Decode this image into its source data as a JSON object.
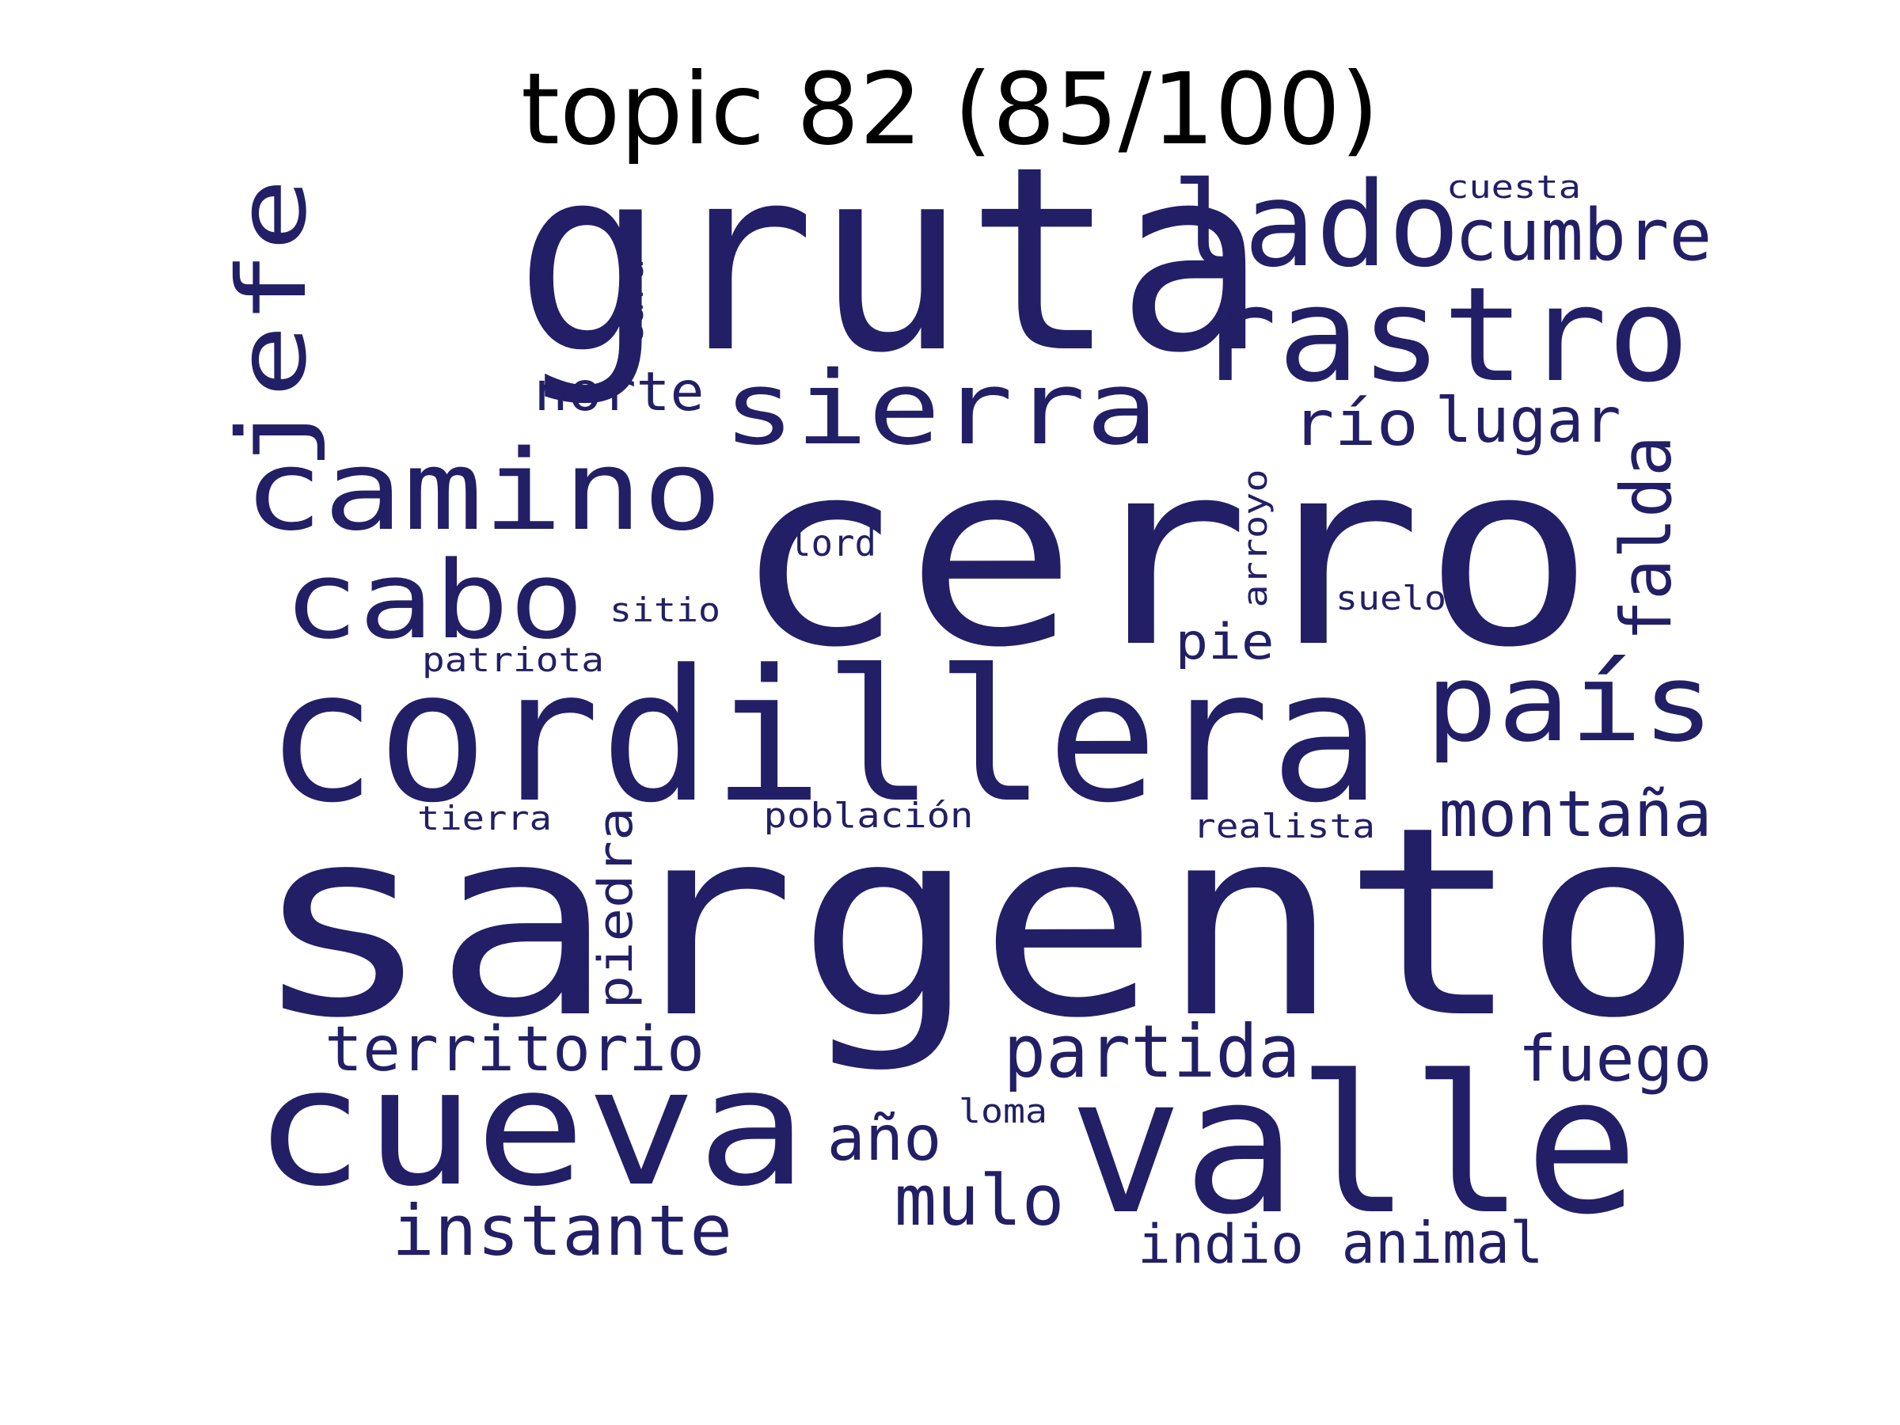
{
  "title": "topic 82 (85/100)",
  "colors": {
    "word": "#221f66",
    "title": "#000000",
    "background": "#ffffff"
  },
  "words": [
    {
      "id": "gruta",
      "text": "gruta"
    },
    {
      "id": "cerro",
      "text": "cerro"
    },
    {
      "id": "sargento",
      "text": "sargento"
    },
    {
      "id": "cordillera",
      "text": "cordillera"
    },
    {
      "id": "valle",
      "text": "valle"
    },
    {
      "id": "cueva",
      "text": "cueva"
    },
    {
      "id": "rastro",
      "text": "rastro"
    },
    {
      "id": "lado",
      "text": "lado"
    },
    {
      "id": "camino",
      "text": "camino"
    },
    {
      "id": "sierra",
      "text": "sierra"
    },
    {
      "id": "cabo",
      "text": "cabo"
    },
    {
      "id": "jefe",
      "text": "jefe"
    },
    {
      "id": "pais",
      "text": "país"
    },
    {
      "id": "cumbre",
      "text": "cumbre"
    },
    {
      "id": "partida",
      "text": "partida"
    },
    {
      "id": "falda",
      "text": "falda"
    },
    {
      "id": "montana",
      "text": "montaña"
    },
    {
      "id": "territorio",
      "text": "territorio"
    },
    {
      "id": "instante",
      "text": "instante"
    },
    {
      "id": "mulo",
      "text": "mulo"
    },
    {
      "id": "fuego",
      "text": "fuego"
    },
    {
      "id": "lugar",
      "text": "lugar"
    },
    {
      "id": "norte",
      "text": "norte"
    },
    {
      "id": "rio",
      "text": "río"
    },
    {
      "id": "indio",
      "text": "indio"
    },
    {
      "id": "animal",
      "text": "animal"
    },
    {
      "id": "piedra",
      "text": "piedra"
    },
    {
      "id": "ano",
      "text": "año"
    },
    {
      "id": "pie",
      "text": "pie"
    },
    {
      "id": "arroyo",
      "text": "arroyo"
    },
    {
      "id": "cuesta",
      "text": "cuesta"
    },
    {
      "id": "cara",
      "text": "cara"
    },
    {
      "id": "lord",
      "text": "lord"
    },
    {
      "id": "suelo",
      "text": "suelo"
    },
    {
      "id": "sitio",
      "text": "sitio"
    },
    {
      "id": "patriota",
      "text": "patriota"
    },
    {
      "id": "tierra",
      "text": "tierra"
    },
    {
      "id": "poblacion",
      "text": "población"
    },
    {
      "id": "realista",
      "text": "realista"
    },
    {
      "id": "loma",
      "text": "loma"
    }
  ]
}
